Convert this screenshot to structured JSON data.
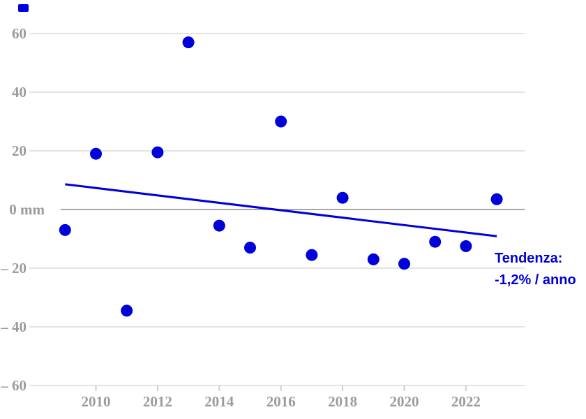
{
  "chart": {
    "y_axis": {
      "tick_labels": [
        "60",
        "40",
        "20",
        "0 mm",
        "– 20",
        "– 40",
        "– 60"
      ],
      "tick_values": [
        60,
        40,
        20,
        0,
        -20,
        -40,
        -60
      ]
    },
    "x_axis": {
      "tick_labels": [
        "2010",
        "2012",
        "2014",
        "2016",
        "2018",
        "2020",
        "2022"
      ],
      "tick_values": [
        2010,
        2012,
        2014,
        2016,
        2018,
        2020,
        2022
      ]
    },
    "annotation": {
      "line1": "Tendenza:",
      "line2": "-1,2% / anno"
    },
    "colors": {
      "accent_blue": "#0000d9",
      "gridline": "#e3e3e3",
      "zero_line": "#8a8a8a",
      "tick": "#cfcfcf",
      "axis_text": "#9c9c9c"
    }
  },
  "chart_data": {
    "type": "scatter",
    "title": "",
    "xlabel": "",
    "ylabel": "mm",
    "x": [
      2009,
      2010,
      2011,
      2012,
      2013,
      2014,
      2015,
      2016,
      2017,
      2018,
      2019,
      2020,
      2021,
      2022,
      2023
    ],
    "values": [
      -7,
      19,
      -34.5,
      19.5,
      57,
      -5.5,
      -13,
      30,
      -15.5,
      4,
      -17,
      -18.5,
      -11,
      -12.5,
      3.5
    ],
    "trend_line": {
      "x": [
        2009,
        2023
      ],
      "y": [
        8.6,
        -9.1
      ],
      "label": "Tendenza: -1,2% / anno"
    },
    "ylim": [
      -70,
      72
    ],
    "xlim": [
      2008,
      2024
    ],
    "grid": "horizontal"
  }
}
